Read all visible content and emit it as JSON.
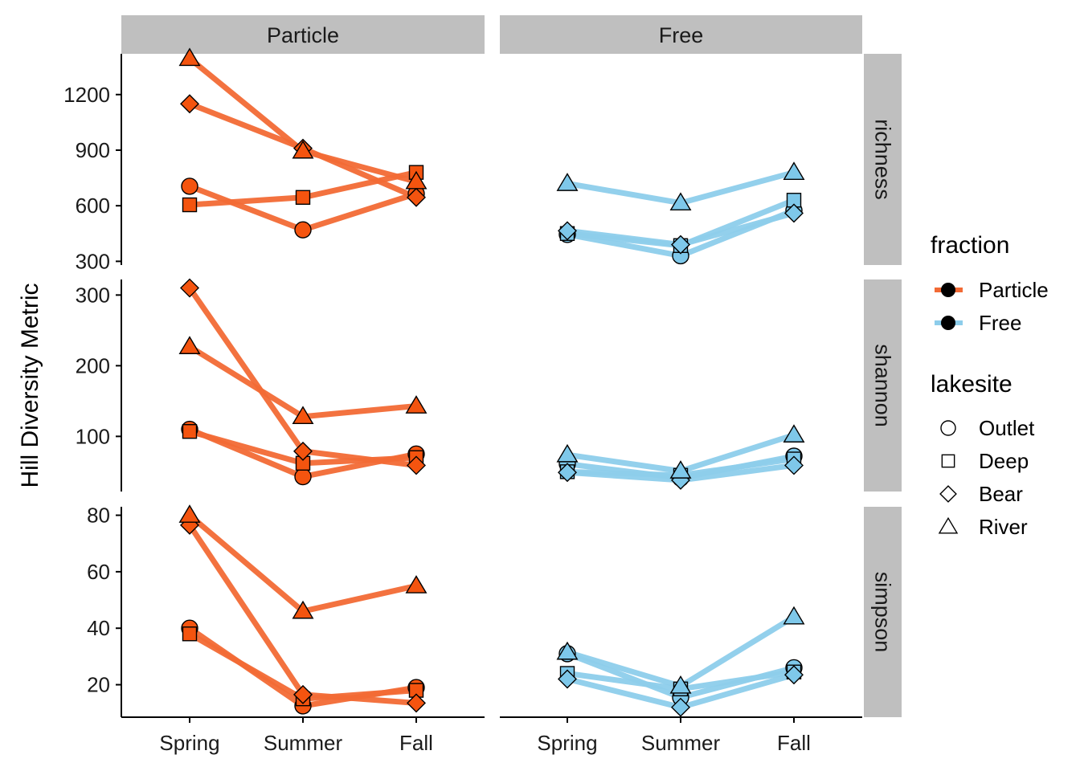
{
  "chart_data": {
    "type": "line",
    "ylabel": "Hill Diversity Metric",
    "categories": [
      "Spring",
      "Summer",
      "Fall"
    ],
    "columns": [
      "Particle",
      "Free"
    ],
    "rows": [
      {
        "name": "richness",
        "ylim": [
          280,
          1420
        ],
        "ticks": [
          300,
          600,
          900,
          1200
        ]
      },
      {
        "name": "shannon",
        "ylim": [
          22,
          322
        ],
        "ticks": [
          100,
          200,
          300
        ]
      },
      {
        "name": "simpson",
        "ylim": [
          8.5,
          83
        ],
        "ticks": [
          20,
          40,
          60,
          80
        ]
      }
    ],
    "colors": {
      "Particle": "#f4540f",
      "Free": "#7ec8ea"
    },
    "line_colors": {
      "Particle": "#f26a35",
      "Free": "#8dcdeb"
    },
    "lakesites": [
      "Outlet",
      "Deep",
      "Bear",
      "River"
    ],
    "shapes": {
      "Outlet": "circle",
      "Deep": "square",
      "Bear": "diamond",
      "River": "triangle"
    },
    "series": [
      {
        "row": "richness",
        "fraction": "Particle",
        "lakesite": "Outlet",
        "values": [
          705,
          470,
          665
        ]
      },
      {
        "row": "richness",
        "fraction": "Particle",
        "lakesite": "Deep",
        "values": [
          605,
          645,
          780
        ]
      },
      {
        "row": "richness",
        "fraction": "Particle",
        "lakesite": "Bear",
        "values": [
          1150,
          910,
          645
        ]
      },
      {
        "row": "richness",
        "fraction": "Particle",
        "lakesite": "River",
        "values": [
          1395,
          895,
          730
        ]
      },
      {
        "row": "richness",
        "fraction": "Free",
        "lakesite": "Outlet",
        "values": [
          445,
          330,
          575
        ]
      },
      {
        "row": "richness",
        "fraction": "Free",
        "lakesite": "Deep",
        "values": [
          450,
          385,
          630
        ]
      },
      {
        "row": "richness",
        "fraction": "Free",
        "lakesite": "Bear",
        "values": [
          465,
          390,
          560
        ]
      },
      {
        "row": "richness",
        "fraction": "Free",
        "lakesite": "River",
        "values": [
          720,
          615,
          780
        ]
      },
      {
        "row": "shannon",
        "fraction": "Particle",
        "lakesite": "Outlet",
        "values": [
          110,
          43,
          75
        ]
      },
      {
        "row": "shannon",
        "fraction": "Particle",
        "lakesite": "Deep",
        "values": [
          107,
          62,
          70
        ]
      },
      {
        "row": "shannon",
        "fraction": "Particle",
        "lakesite": "Bear",
        "values": [
          310,
          79,
          59
        ]
      },
      {
        "row": "shannon",
        "fraction": "Particle",
        "lakesite": "River",
        "values": [
          227,
          128,
          143
        ]
      },
      {
        "row": "shannon",
        "fraction": "Free",
        "lakesite": "Outlet",
        "values": [
          61,
          41,
          72
        ]
      },
      {
        "row": "shannon",
        "fraction": "Free",
        "lakesite": "Deep",
        "values": [
          50,
          45,
          68
        ]
      },
      {
        "row": "shannon",
        "fraction": "Free",
        "lakesite": "Bear",
        "values": [
          49,
          38,
          59
        ]
      },
      {
        "row": "shannon",
        "fraction": "Free",
        "lakesite": "River",
        "values": [
          74,
          51,
          102
        ]
      },
      {
        "row": "simpson",
        "fraction": "Particle",
        "lakesite": "Outlet",
        "values": [
          40,
          12.5,
          19
        ]
      },
      {
        "row": "simpson",
        "fraction": "Particle",
        "lakesite": "Deep",
        "values": [
          38,
          15,
          18
        ]
      },
      {
        "row": "simpson",
        "fraction": "Particle",
        "lakesite": "Bear",
        "values": [
          76.5,
          16.5,
          13.5
        ]
      },
      {
        "row": "simpson",
        "fraction": "Particle",
        "lakesite": "River",
        "values": [
          80,
          46,
          55
        ]
      },
      {
        "row": "simpson",
        "fraction": "Free",
        "lakesite": "Outlet",
        "values": [
          31,
          15.5,
          26
        ]
      },
      {
        "row": "simpson",
        "fraction": "Free",
        "lakesite": "Deep",
        "values": [
          24,
          18.5,
          24.5
        ]
      },
      {
        "row": "simpson",
        "fraction": "Free",
        "lakesite": "Bear",
        "values": [
          22,
          12,
          23.5
        ]
      },
      {
        "row": "simpson",
        "fraction": "Free",
        "lakesite": "River",
        "values": [
          31.5,
          19.5,
          44
        ]
      }
    ],
    "legend": {
      "placement": "right",
      "fraction_title": "fraction",
      "fraction_items": [
        "Particle",
        "Free"
      ],
      "lakesite_title": "lakesite",
      "lakesite_items": [
        "Outlet",
        "Deep",
        "Bear",
        "River"
      ]
    }
  }
}
